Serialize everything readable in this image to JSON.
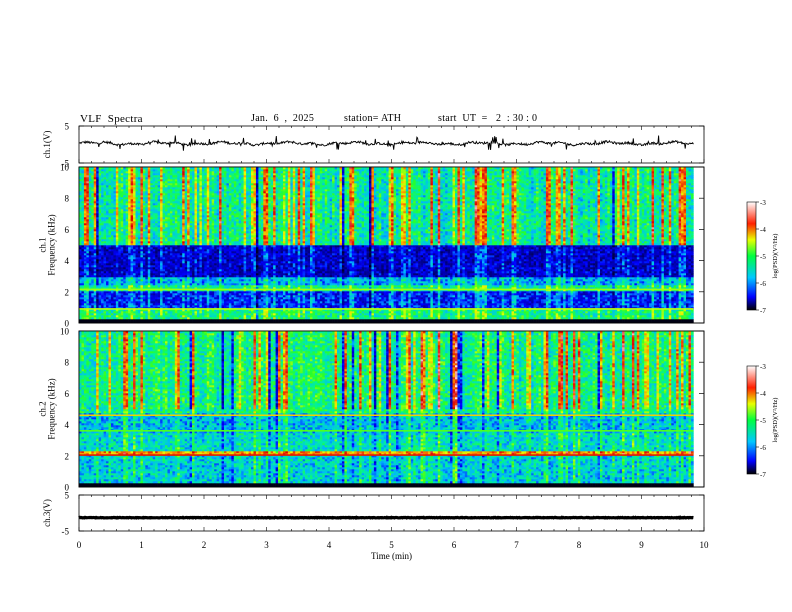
{
  "header": {
    "title": "VLF  Spectra",
    "date": "Jan.  6  ,  2025",
    "station": "station= ATH",
    "start_ut": "start  UT  =   2  : 30 : 0"
  },
  "chart_data": [
    {
      "type": "line",
      "name": "ch1-waveform",
      "ylabel": "ch.1(V)",
      "ylim": [
        -5,
        5
      ],
      "yticks": [
        -5,
        5
      ],
      "xlim": [
        0,
        10
      ],
      "color": "#000000",
      "baseline_v": 0.3,
      "variability": "noisy, frequent spikes of a few volts"
    },
    {
      "type": "heatmap",
      "name": "ch1-spectrogram",
      "ylabel": "ch.1\nFrequency  (kHz)",
      "ylim": [
        0,
        10
      ],
      "yticks": [
        0,
        2,
        4,
        6,
        8,
        10
      ],
      "xlim": [
        0,
        10
      ],
      "data_end_min": 9.83,
      "colorbar": {
        "label": "log(PSD)(V²/Hz)",
        "ticks": [
          -3,
          -4,
          -5,
          -6,
          -7
        ],
        "range": [
          -7,
          -3
        ]
      },
      "features": [
        {
          "kind": "band",
          "freq_khz": [
            0.0,
            0.3
          ],
          "level": -7.0
        },
        {
          "kind": "band",
          "freq_khz": [
            0.3,
            0.9
          ],
          "level": -5.2
        },
        {
          "kind": "band",
          "freq_khz": [
            0.9,
            2.0
          ],
          "level": -6.3
        },
        {
          "kind": "band",
          "freq_khz": [
            2.0,
            2.4
          ],
          "level": -5.3
        },
        {
          "kind": "band",
          "freq_khz": [
            2.4,
            3.0
          ],
          "level": -5.8
        },
        {
          "kind": "band",
          "freq_khz": [
            3.0,
            5.0
          ],
          "level": -6.6
        },
        {
          "kind": "band",
          "freq_khz": [
            5.0,
            10.0
          ],
          "level": -5.3
        },
        {
          "kind": "line",
          "freq_khz": 2.15,
          "level": -4.6
        },
        {
          "kind": "line",
          "freq_khz": 0.9,
          "level": -4.5
        }
      ]
    },
    {
      "type": "heatmap",
      "name": "ch2-spectrogram",
      "ylabel": "ch.2\nFrequency  (kHz)",
      "ylim": [
        0,
        10
      ],
      "yticks": [
        0,
        2,
        4,
        6,
        8,
        10
      ],
      "xlim": [
        0,
        10
      ],
      "data_end_min": 9.83,
      "colorbar": {
        "label": "log(PSD)(V²/Hz)",
        "ticks": [
          -3,
          -4,
          -5,
          -6,
          -7
        ],
        "range": [
          -7,
          -3
        ]
      },
      "features": [
        {
          "kind": "band",
          "freq_khz": [
            0.0,
            0.2
          ],
          "level": -7.0
        },
        {
          "kind": "band",
          "freq_khz": [
            0.2,
            2.0
          ],
          "level": -5.6
        },
        {
          "kind": "band",
          "freq_khz": [
            2.0,
            2.3
          ],
          "level": -4.0
        },
        {
          "kind": "band",
          "freq_khz": [
            2.3,
            3.5
          ],
          "level": -5.5
        },
        {
          "kind": "band",
          "freq_khz": [
            3.5,
            4.7
          ],
          "level": -5.7
        },
        {
          "kind": "band",
          "freq_khz": [
            4.7,
            10.0
          ],
          "level": -5.2
        },
        {
          "kind": "line",
          "freq_khz": 2.05,
          "level": -3.5
        },
        {
          "kind": "line",
          "freq_khz": 4.6,
          "level": -4.2
        },
        {
          "kind": "line",
          "freq_khz": 3.6,
          "level": -4.8
        }
      ]
    },
    {
      "type": "line",
      "name": "ch3-waveform",
      "ylabel": "ch.3(V)",
      "ylim": [
        -5,
        5
      ],
      "yticks": [
        -5,
        5
      ],
      "xlim": [
        0,
        10
      ],
      "xlabel": "Time  (min)",
      "xticks": [
        0,
        1,
        2,
        3,
        4,
        5,
        6,
        7,
        8,
        9,
        10
      ],
      "color": "#000000",
      "baseline_v": -1.3,
      "variability": "flat, very low amplitude"
    }
  ]
}
